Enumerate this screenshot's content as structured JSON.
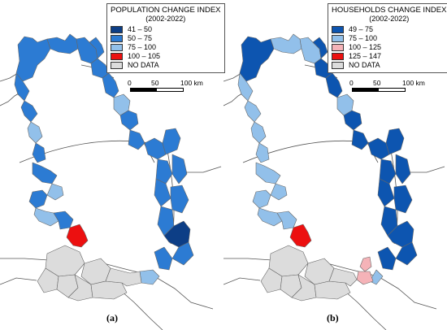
{
  "colors": {
    "dark_blue": "#0d3e86",
    "mid_blue": "#2c7bd3",
    "light_blue": "#92c0ea",
    "pink": "#f5b3b8",
    "red": "#ec1010",
    "no_data": "#dcdcdc",
    "border": "#666666"
  },
  "map_a": {
    "legend": {
      "title": "POPULATION CHANGE INDEX",
      "subtitle": "(2002-2022)",
      "items": [
        {
          "label": "41 – 50",
          "color": "#0d3e86"
        },
        {
          "label": "50 – 75",
          "color": "#2c7bd3"
        },
        {
          "label": "75 – 100",
          "color": "#92c0ea"
        },
        {
          "label": "100 – 105",
          "color": "#ec1010"
        },
        {
          "label": "NO DATA",
          "color": "#dcdcdc"
        }
      ]
    },
    "scale": {
      "t0": "0",
      "t1": "50",
      "t2": "100 km"
    },
    "caption": "(a)"
  },
  "map_b": {
    "legend": {
      "title": "HOUSEHOLDS CHANGE INDEX",
      "subtitle": "(2002-2022)",
      "items": [
        {
          "label": "49 – 75",
          "color": "#0d55b0"
        },
        {
          "label": "75 – 100",
          "color": "#92c0ea"
        },
        {
          "label": "100 – 125",
          "color": "#f5b3b8"
        },
        {
          "label": "125 – 147",
          "color": "#ec1010"
        },
        {
          "label": "NO DATA",
          "color": "#dcdcdc"
        }
      ]
    },
    "scale": {
      "t0": "0",
      "t1": "50",
      "t2": "100 km"
    },
    "caption": "(b)"
  }
}
